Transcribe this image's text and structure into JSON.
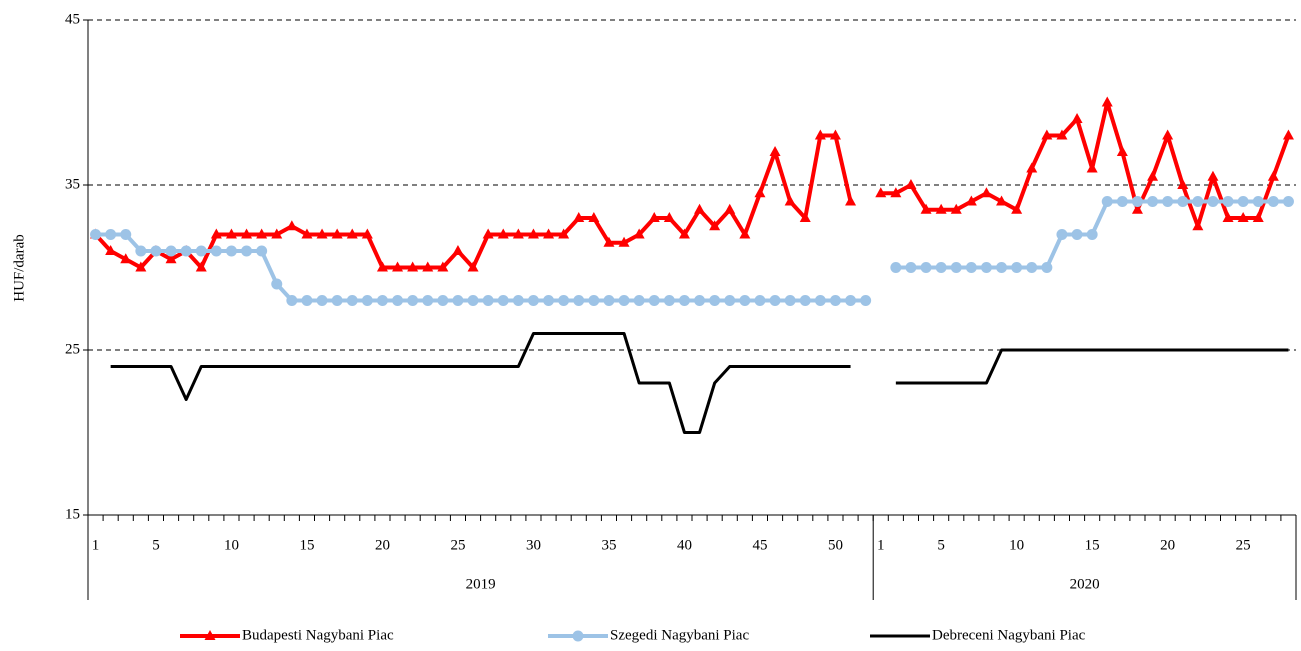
{
  "chart_data": {
    "type": "line",
    "y_label": "HUF/darab",
    "ylim": [
      15,
      45
    ],
    "yticks": [
      15,
      25,
      35,
      45
    ],
    "grid": true,
    "legend": "bottom",
    "category_groups": [
      {
        "label": "2019",
        "categories": [
          "1",
          null,
          null,
          null,
          "5",
          null,
          null,
          null,
          null,
          "10",
          null,
          null,
          null,
          null,
          "15",
          null,
          null,
          null,
          null,
          "20",
          null,
          null,
          null,
          null,
          "25",
          null,
          null,
          null,
          null,
          "30",
          null,
          null,
          null,
          null,
          "35",
          null,
          null,
          null,
          null,
          "40",
          null,
          null,
          null,
          null,
          "45",
          null,
          null,
          null,
          null,
          "50",
          null,
          null
        ]
      },
      {
        "label": "2020",
        "categories": [
          "1",
          null,
          null,
          null,
          "5",
          null,
          null,
          null,
          null,
          "10",
          null,
          null,
          null,
          null,
          "15",
          null,
          null,
          null,
          null,
          "20",
          null,
          null,
          null,
          null,
          "25",
          null,
          null,
          null
        ]
      }
    ],
    "series": [
      {
        "name": "Budapesti Nagybani Piac",
        "color": "#ff0000",
        "marker": "triangle",
        "values": [
          32,
          31,
          30.5,
          30,
          31,
          30.5,
          31,
          30,
          32,
          32,
          32,
          32,
          32,
          32.5,
          32,
          32,
          32,
          32,
          32,
          30,
          30,
          30,
          30,
          30,
          31,
          30,
          32,
          32,
          32,
          32,
          32,
          32,
          33,
          33,
          31.5,
          31.5,
          32,
          33,
          33,
          32,
          33.5,
          32.5,
          33.5,
          32,
          34.5,
          37,
          34,
          33,
          38,
          38,
          34,
          null,
          34.5,
          34.5,
          35,
          33.5,
          33.5,
          33.5,
          34,
          34.5,
          34,
          33.5,
          36,
          38,
          38,
          39,
          36,
          40,
          37,
          33.5,
          35.5,
          38,
          35,
          32.5,
          35.5,
          33,
          33,
          33,
          35.5,
          38
        ]
      },
      {
        "name": "Szegedi Nagybani Piac",
        "color": "#9dc3e6",
        "marker": "circle",
        "values": [
          32,
          32,
          32,
          31,
          31,
          31,
          31,
          31,
          31,
          31,
          31,
          31,
          29,
          28,
          28,
          28,
          28,
          28,
          28,
          28,
          28,
          28,
          28,
          28,
          28,
          28,
          28,
          28,
          28,
          28,
          28,
          28,
          28,
          28,
          28,
          28,
          28,
          28,
          28,
          28,
          28,
          28,
          28,
          28,
          28,
          28,
          28,
          28,
          28,
          28,
          28,
          28,
          null,
          30,
          30,
          30,
          30,
          30,
          30,
          30,
          30,
          30,
          30,
          30,
          32,
          32,
          32,
          34,
          34,
          34,
          34,
          34,
          34,
          34,
          34,
          34,
          34,
          34,
          34,
          34
        ]
      },
      {
        "name": "Debreceni Nagybani Piac",
        "color": "#000000",
        "marker": "none",
        "values": [
          null,
          24,
          24,
          24,
          24,
          24,
          22,
          24,
          24,
          24,
          24,
          24,
          24,
          24,
          24,
          24,
          24,
          24,
          24,
          24,
          24,
          24,
          24,
          24,
          24,
          24,
          24,
          24,
          24,
          26,
          26,
          26,
          26,
          26,
          26,
          26,
          23,
          23,
          23,
          20,
          20,
          23,
          24,
          24,
          24,
          24,
          24,
          24,
          24,
          24,
          24,
          null,
          null,
          23,
          23,
          23,
          23,
          23,
          23,
          23,
          25,
          25,
          25,
          25,
          25,
          25,
          25,
          25,
          25,
          25,
          25,
          25,
          25,
          25,
          25,
          25,
          25,
          25,
          25,
          25
        ]
      }
    ]
  }
}
